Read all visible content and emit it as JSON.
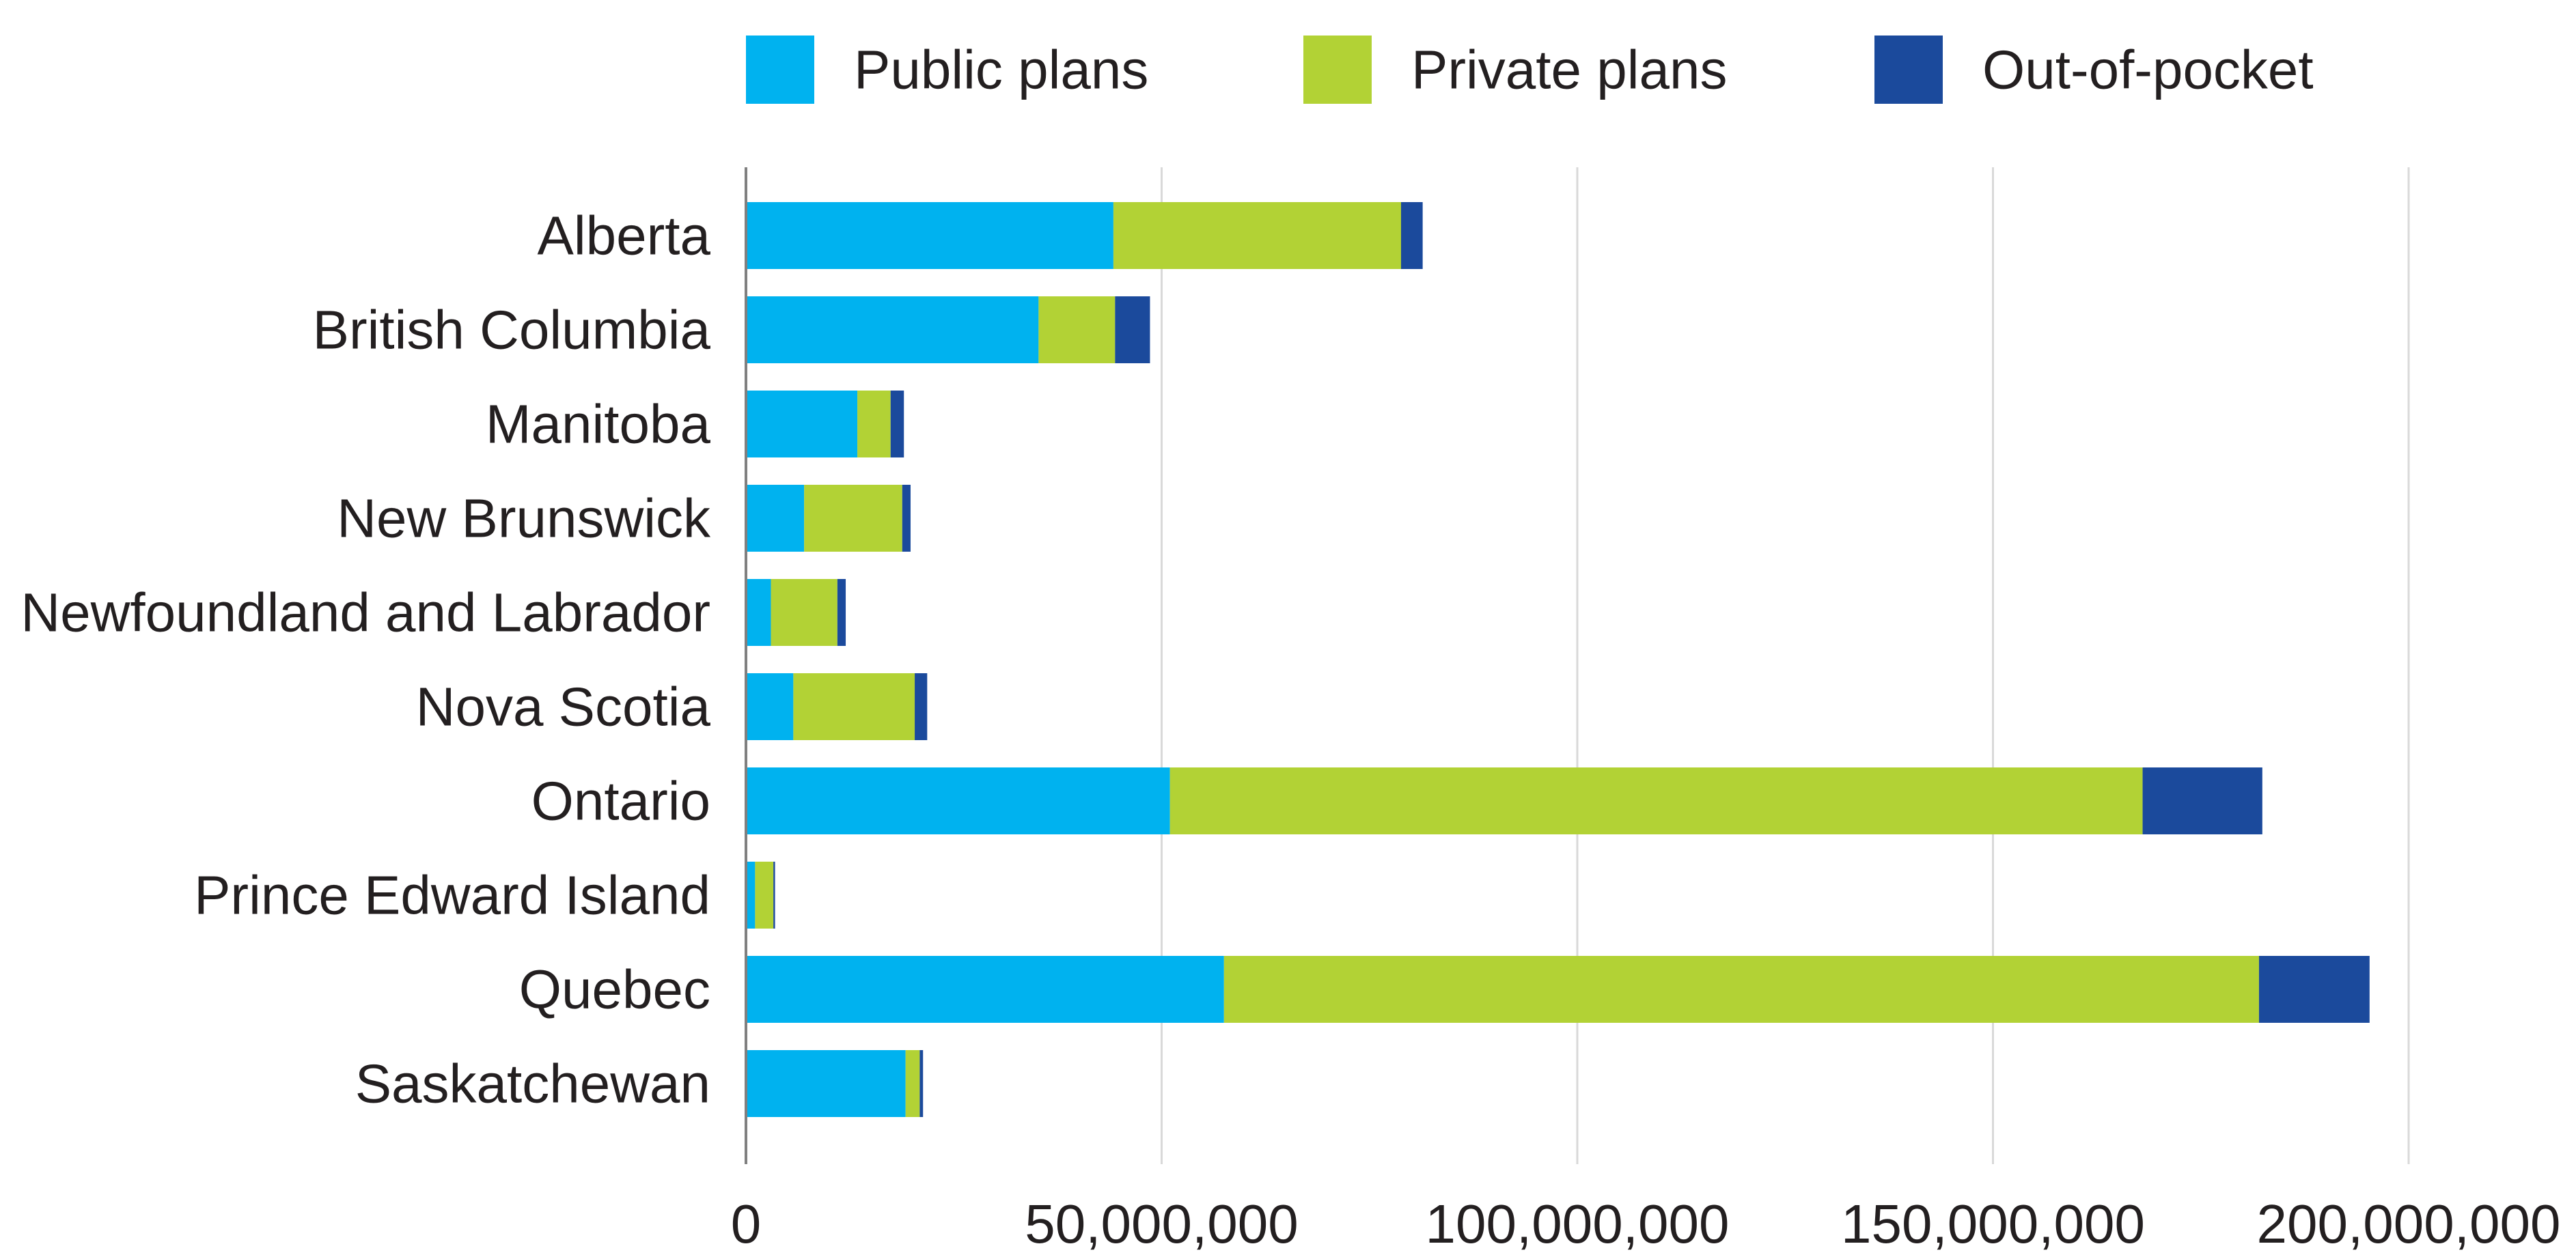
{
  "chart_data": {
    "type": "bar",
    "orientation": "horizontal",
    "stacked": true,
    "title": "",
    "xlabel": "",
    "ylabel": "",
    "legend_position": "top",
    "grid": true,
    "xlim": [
      0,
      200000000
    ],
    "x_ticks": [
      0,
      50000000,
      100000000,
      150000000,
      200000000
    ],
    "x_tick_labels": [
      "0",
      "50,000,000",
      "100,000,000",
      "150,000,000",
      "200,000,000"
    ],
    "categories": [
      "Alberta",
      "British Columbia",
      "Manitoba",
      "New Brunswick",
      "Newfoundland and Labrador",
      "Nova Scotia",
      "Ontario",
      "Prince Edward Island",
      "Quebec",
      "Saskatchewan"
    ],
    "series": [
      {
        "name": "Public plans",
        "color": "#00b2ef",
        "values": [
          44200000,
          35200000,
          13400000,
          7000000,
          3000000,
          5700000,
          51000000,
          1100000,
          57500000,
          19200000
        ]
      },
      {
        "name": "Private plans",
        "color": "#b2d235",
        "values": [
          34600000,
          9200000,
          4000000,
          11800000,
          8000000,
          14600000,
          117000000,
          2200000,
          124500000,
          1700000
        ]
      },
      {
        "name": "Out-of-pocket",
        "color": "#1b4a9c",
        "values": [
          2600000,
          4200000,
          1600000,
          1000000,
          1000000,
          1500000,
          14400000,
          200000,
          13300000,
          400000
        ]
      }
    ]
  }
}
